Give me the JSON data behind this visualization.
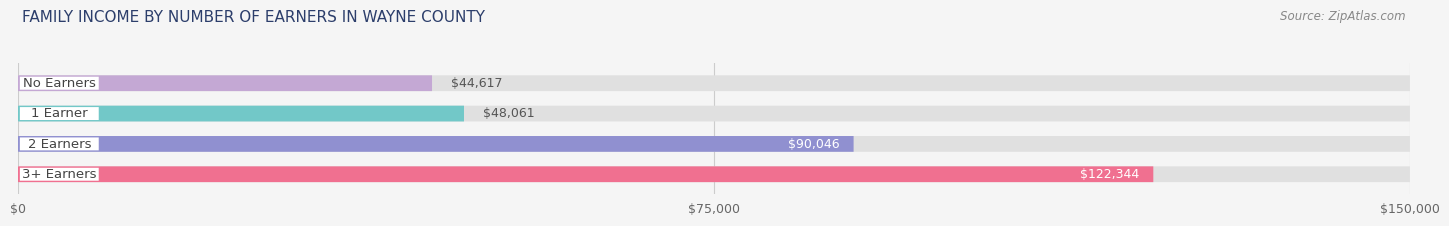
{
  "title": "FAMILY INCOME BY NUMBER OF EARNERS IN WAYNE COUNTY",
  "source": "Source: ZipAtlas.com",
  "categories": [
    "No Earners",
    "1 Earner",
    "2 Earners",
    "3+ Earners"
  ],
  "values": [
    44617,
    48061,
    90046,
    122344
  ],
  "bar_colors": [
    "#c4a8d4",
    "#72c8c8",
    "#9090d0",
    "#f07090"
  ],
  "value_labels": [
    "$44,617",
    "$48,061",
    "$90,046",
    "$122,344"
  ],
  "xlim": [
    0,
    150000
  ],
  "xticks": [
    0,
    75000,
    150000
  ],
  "xtick_labels": [
    "$0",
    "$75,000",
    "$150,000"
  ],
  "background_color": "#f5f5f5",
  "bar_background_color": "#e0e0e0",
  "label_badge_color": "#ffffff",
  "title_fontsize": 11,
  "source_fontsize": 8.5,
  "label_fontsize": 9.5,
  "value_fontsize": 9,
  "tick_fontsize": 9,
  "title_color": "#2c3e6b",
  "label_text_color": "#444444",
  "value_color_outside": "#555555",
  "value_color_inside": "#ffffff",
  "source_color": "#888888"
}
